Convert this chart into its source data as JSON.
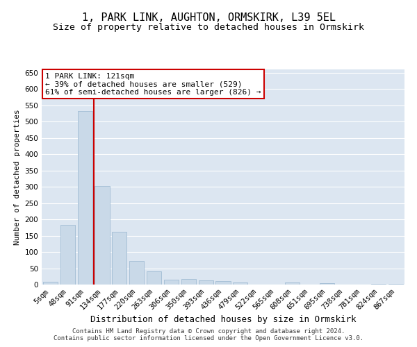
{
  "title": "1, PARK LINK, AUGHTON, ORMSKIRK, L39 5EL",
  "subtitle": "Size of property relative to detached houses in Ormskirk",
  "xlabel": "Distribution of detached houses by size in Ormskirk",
  "ylabel": "Number of detached properties",
  "categories": [
    "5sqm",
    "48sqm",
    "91sqm",
    "134sqm",
    "177sqm",
    "220sqm",
    "263sqm",
    "306sqm",
    "350sqm",
    "393sqm",
    "436sqm",
    "479sqm",
    "522sqm",
    "565sqm",
    "608sqm",
    "651sqm",
    "695sqm",
    "738sqm",
    "781sqm",
    "824sqm",
    "867sqm"
  ],
  "values": [
    8,
    183,
    532,
    303,
    161,
    72,
    40,
    15,
    18,
    12,
    10,
    7,
    0,
    0,
    6,
    0,
    4,
    0,
    0,
    2,
    2
  ],
  "bar_color": "#c9d9e8",
  "bar_edge_color": "#a0bcd4",
  "vline_color": "#cc0000",
  "vline_x_index": 2.5,
  "annotation_text_line1": "1 PARK LINK: 121sqm",
  "annotation_text_line2": "← 39% of detached houses are smaller (529)",
  "annotation_text_line3": "61% of semi-detached houses are larger (826) →",
  "annotation_box_color": "#ffffff",
  "annotation_box_edge": "#cc0000",
  "ylim": [
    0,
    660
  ],
  "yticks": [
    0,
    50,
    100,
    150,
    200,
    250,
    300,
    350,
    400,
    450,
    500,
    550,
    600,
    650
  ],
  "background_color": "#dce6f1",
  "footer_line1": "Contains HM Land Registry data © Crown copyright and database right 2024.",
  "footer_line2": "Contains public sector information licensed under the Open Government Licence v3.0.",
  "title_fontsize": 11,
  "subtitle_fontsize": 9.5,
  "xlabel_fontsize": 9,
  "ylabel_fontsize": 8,
  "tick_fontsize": 7.5,
  "annotation_fontsize": 8,
  "footer_fontsize": 6.5
}
